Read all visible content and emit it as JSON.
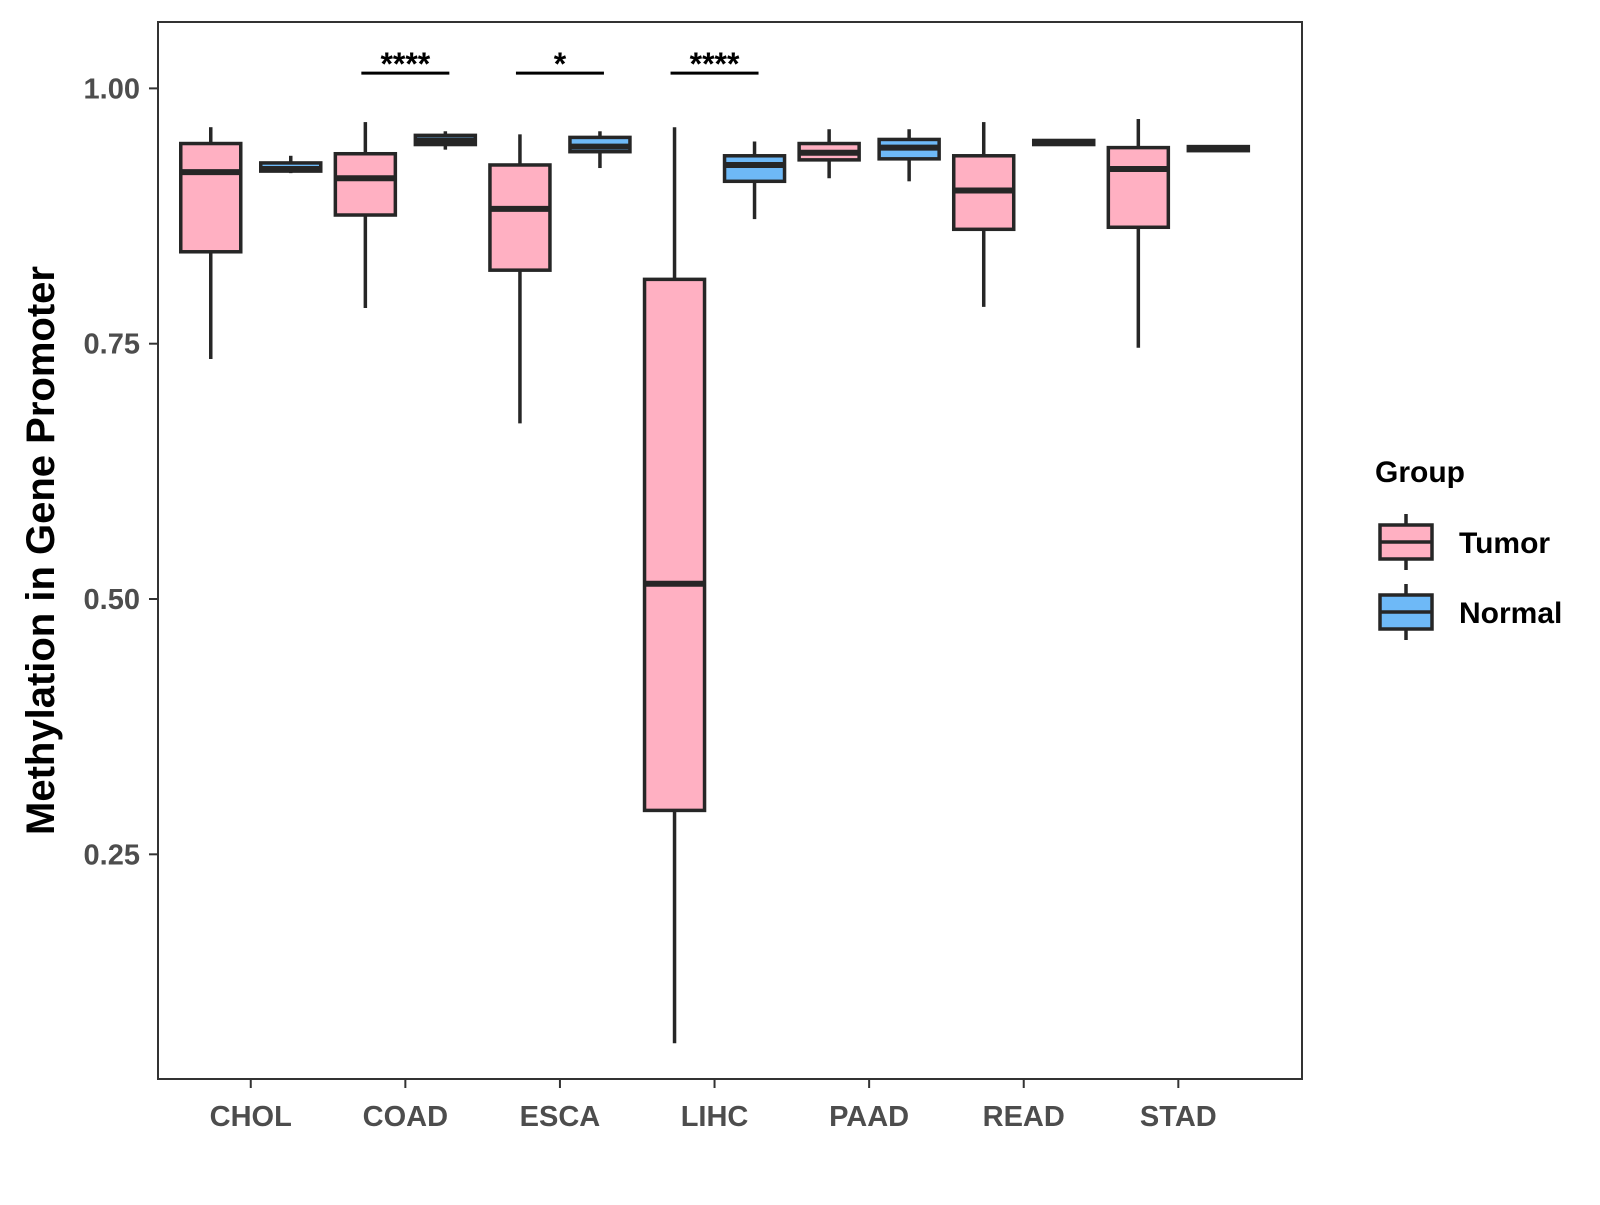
{
  "chart_data": {
    "type": "boxplot",
    "title": "",
    "xlabel": "",
    "ylabel": "Methylation in Gene Promoter",
    "categories": [
      "CHOL",
      "COAD",
      "ESCA",
      "LIHC",
      "PAAD",
      "READ",
      "STAD"
    ],
    "yticks": [
      0.25,
      0.5,
      0.75,
      1.0
    ],
    "ytick_labels": [
      "0.25",
      "0.50",
      "0.75",
      "1.00"
    ],
    "ylim": [
      0.03,
      1.065
    ],
    "grid": false,
    "legend": {
      "title": "Group",
      "position": "right",
      "entries": [
        {
          "name": "Tumor",
          "color": "#FFB0C2"
        },
        {
          "name": "Normal",
          "color": "#6EB9F7"
        }
      ]
    },
    "series": [
      {
        "name": "Tumor",
        "color": "#FFB0C2",
        "boxes": [
          {
            "category": "CHOL",
            "min": 0.735,
            "q1": 0.84,
            "median": 0.918,
            "q3": 0.946,
            "max": 0.962
          },
          {
            "category": "COAD",
            "min": 0.785,
            "q1": 0.876,
            "median": 0.912,
            "q3": 0.936,
            "max": 0.967
          },
          {
            "category": "ESCA",
            "min": 0.672,
            "q1": 0.822,
            "median": 0.882,
            "q3": 0.925,
            "max": 0.955
          },
          {
            "category": "LIHC",
            "min": 0.065,
            "q1": 0.293,
            "median": 0.515,
            "q3": 0.813,
            "max": 0.962
          },
          {
            "category": "PAAD",
            "min": 0.912,
            "q1": 0.93,
            "median": 0.937,
            "q3": 0.946,
            "max": 0.96
          },
          {
            "category": "READ",
            "min": 0.786,
            "q1": 0.862,
            "median": 0.9,
            "q3": 0.934,
            "max": 0.967
          },
          {
            "category": "STAD",
            "min": 0.746,
            "q1": 0.864,
            "median": 0.921,
            "q3": 0.942,
            "max": 0.97
          }
        ]
      },
      {
        "name": "Normal",
        "color": "#6EB9F7",
        "boxes": [
          {
            "category": "CHOL",
            "min": 0.917,
            "q1": 0.919,
            "median": 0.921,
            "q3": 0.927,
            "max": 0.934
          },
          {
            "category": "COAD",
            "min": 0.94,
            "q1": 0.945,
            "median": 0.949,
            "q3": 0.954,
            "max": 0.958
          },
          {
            "category": "ESCA",
            "min": 0.922,
            "q1": 0.938,
            "median": 0.943,
            "q3": 0.952,
            "max": 0.958
          },
          {
            "category": "LIHC",
            "min": 0.872,
            "q1": 0.909,
            "median": 0.925,
            "q3": 0.934,
            "max": 0.948
          },
          {
            "category": "PAAD",
            "min": 0.909,
            "q1": 0.931,
            "median": 0.942,
            "q3": 0.95,
            "max": 0.96
          },
          {
            "category": "READ",
            "min": 0.944,
            "q1": 0.945,
            "median": 0.947,
            "q3": 0.949,
            "max": 0.95
          },
          {
            "category": "STAD",
            "min": 0.938,
            "q1": 0.939,
            "median": 0.941,
            "q3": 0.943,
            "max": 0.944
          }
        ]
      }
    ],
    "annotations": [
      {
        "category": "COAD",
        "label": "****",
        "y": 1.015
      },
      {
        "category": "ESCA",
        "label": "*",
        "y": 1.015
      },
      {
        "category": "LIHC",
        "label": "****",
        "y": 1.015
      }
    ]
  }
}
